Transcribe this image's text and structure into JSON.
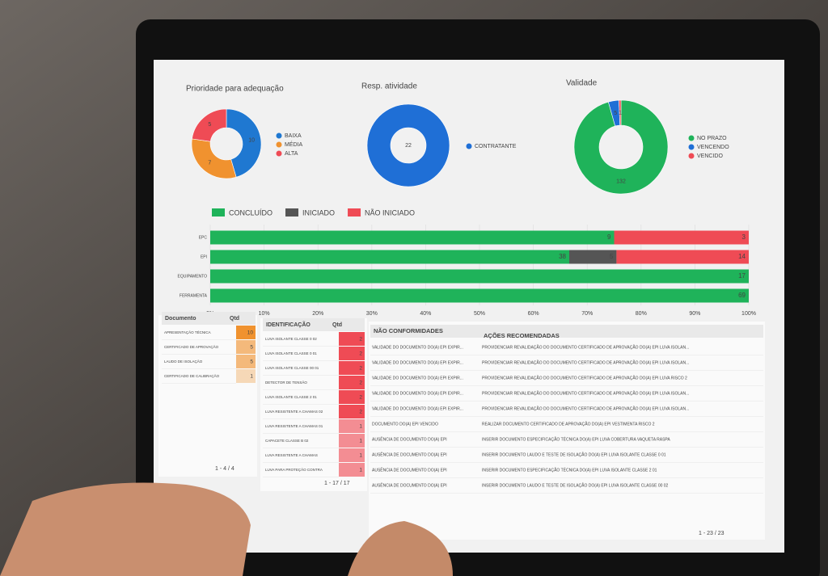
{
  "chart_data": [
    {
      "type": "donut",
      "title": "Prioridade para adequação",
      "categories": [
        "BAIXA",
        "MÉDIA",
        "ALTA"
      ],
      "values": [
        10,
        7,
        5
      ],
      "colors": [
        "#1f78d1",
        "#f0922f",
        "#ef4b55"
      ]
    },
    {
      "type": "donut",
      "title": "Resp. atividade",
      "categories": [
        "CONTRATANTE"
      ],
      "values": [
        22
      ],
      "colors": [
        "#1f6fd6"
      ]
    },
    {
      "type": "donut",
      "title": "Validade",
      "categories": [
        "NO PRAZO",
        "VENCENDO",
        "VENCIDO"
      ],
      "values": [
        132,
        5,
        1
      ],
      "colors": [
        "#1fb35a",
        "#1f6fd6",
        "#ef4b55"
      ]
    },
    {
      "type": "bar",
      "orientation": "horizontal",
      "stacked_percent": true,
      "categories": [
        "EPC",
        "EPI",
        "EQUIPAMENTO",
        "FERRAMENTA"
      ],
      "series": [
        {
          "name": "CONCLUÍDO",
          "color": "#1fb35a",
          "values": [
            9,
            38,
            17,
            69
          ]
        },
        {
          "name": "INICIADO",
          "color": "#555555",
          "values": [
            null,
            5,
            null,
            null
          ]
        },
        {
          "name": "NÃO INICIADO",
          "color": "#ef4b55",
          "values": [
            3,
            14,
            null,
            null
          ]
        }
      ],
      "xlim": [
        0,
        100
      ],
      "xticks": [
        {
          "value": 0,
          "label": "0%"
        },
        {
          "value": 10,
          "label": "10%"
        },
        {
          "value": 20,
          "label": "20%"
        },
        {
          "value": 30,
          "label": "30%"
        },
        {
          "value": 40,
          "label": "40%"
        },
        {
          "value": 50,
          "label": "50%"
        },
        {
          "value": 60,
          "label": "60%"
        },
        {
          "value": 70,
          "label": "70%"
        },
        {
          "value": 80,
          "label": "80%"
        },
        {
          "value": 90,
          "label": "90%"
        },
        {
          "value": 100,
          "label": "100%"
        }
      ]
    }
  ],
  "tables": [
    {
      "columns": [
        "Documento",
        "Qtd"
      ],
      "color": "#f0922f",
      "pagination": "1 - 4 / 4",
      "rows": [
        [
          "APRESENTAÇÃO TÉCNICA",
          10
        ],
        [
          "CERTIFICADO DE APROVAÇÃO",
          5
        ],
        [
          "LAUDO DE ISOLAÇÃO",
          5
        ],
        [
          "CERTIFICADO DE CALIBRAÇÃO",
          1
        ]
      ]
    },
    {
      "columns": [
        "IDENTIFICAÇÃO",
        "Qtd"
      ],
      "color": "#ef4b55",
      "pagination": "1 - 17 / 17",
      "rows": [
        [
          "LUVA ISOLANTE CLASSE 0 02",
          2
        ],
        [
          "LUVA ISOLANTE CLASSE 0 01",
          2
        ],
        [
          "LUVA ISOLANTE CLASSE 00 01",
          2
        ],
        [
          "DETECTOR DE TENSÃO",
          2
        ],
        [
          "LUVA ISOLANTE CLASSE 2 01",
          2
        ],
        [
          "LUVA RESISTENTE A CHAMAS 02",
          2
        ],
        [
          "LUVA RESISTENTE A CHAMAS 01",
          1
        ],
        [
          "CAPACETE CLASSE B 02",
          1
        ],
        [
          "LUVA RESISTENTE A CHAMAS",
          1
        ],
        [
          "LUVA PARA PROTEÇÃO CONTRA",
          1
        ]
      ]
    },
    {
      "columns": [
        "NÃO CONFORMIDADES",
        "AÇÕES RECOMENDADAS"
      ],
      "pagination": "1 - 23 / 23",
      "rows": [
        [
          "VALIDADE DO DOCUMENTO DO(A) EPI EXPIR...",
          "PROVIDENCIAR REVALIDAÇÃO DO DOCUMENTO CERTIFICADO DE APROVAÇÃO DO(A) EPI LUVA ISOLAN..."
        ],
        [
          "VALIDADE DO DOCUMENTO DO(A) EPI EXPIR...",
          "PROVIDENCIAR REVALIDAÇÃO DO DOCUMENTO CERTIFICADO DE APROVAÇÃO DO(A) EPI LUVA ISOLAN..."
        ],
        [
          "VALIDADE DO DOCUMENTO DO(A) EPI EXPIR...",
          "PROVIDENCIAR REVALIDAÇÃO DO DOCUMENTO CERTIFICADO DE APROVAÇÃO DO(A) EPI LUVA RISCO 2"
        ],
        [
          "VALIDADE DO DOCUMENTO DO(A) EPI EXPIR...",
          "PROVIDENCIAR REVALIDAÇÃO DO DOCUMENTO CERTIFICADO DE APROVAÇÃO DO(A) EPI LUVA ISOLAN..."
        ],
        [
          "VALIDADE DO DOCUMENTO DO(A) EPI EXPIR...",
          "PROVIDENCIAR REVALIDAÇÃO DO DOCUMENTO CERTIFICADO DE APROVAÇÃO DO(A) EPI LUVA ISOLAN..."
        ],
        [
          "DOCUMENTO DO(A) EPI VENCIDO",
          "REALIZAR DOCUMENTO CERTIFICADO DE APROVAÇÃO DO(A) EPI VESTIMENTA RISCO 2"
        ],
        [
          "AUSÊNCIA DE DOCUMENTO DO(A) EPI",
          "INSERIR DOCUMENTO ESPECIFICAÇÃO TÉCNICA DO(A) EPI LUVA COBERTURA VAQUETA RASPA"
        ],
        [
          "AUSÊNCIA DE DOCUMENTO DO(A) EPI",
          "INSERIR DOCUMENTO LAUDO E TESTE DE ISOLAÇÃO DO(A) EPI LUVA ISOLANTE CLASSE 0 01"
        ],
        [
          "AUSÊNCIA DE DOCUMENTO DO(A) EPI",
          "INSERIR DOCUMENTO ESPECIFICAÇÃO TÉCNICA DO(A) EPI LUVA ISOLANTE CLASSE 2 01"
        ],
        [
          "AUSÊNCIA DE DOCUMENTO DO(A) EPI",
          "INSERIR DOCUMENTO LAUDO E TESTE DE ISOLAÇÃO DO(A) EPI LUVA ISOLANTE CLASSE 00 02"
        ]
      ]
    }
  ]
}
